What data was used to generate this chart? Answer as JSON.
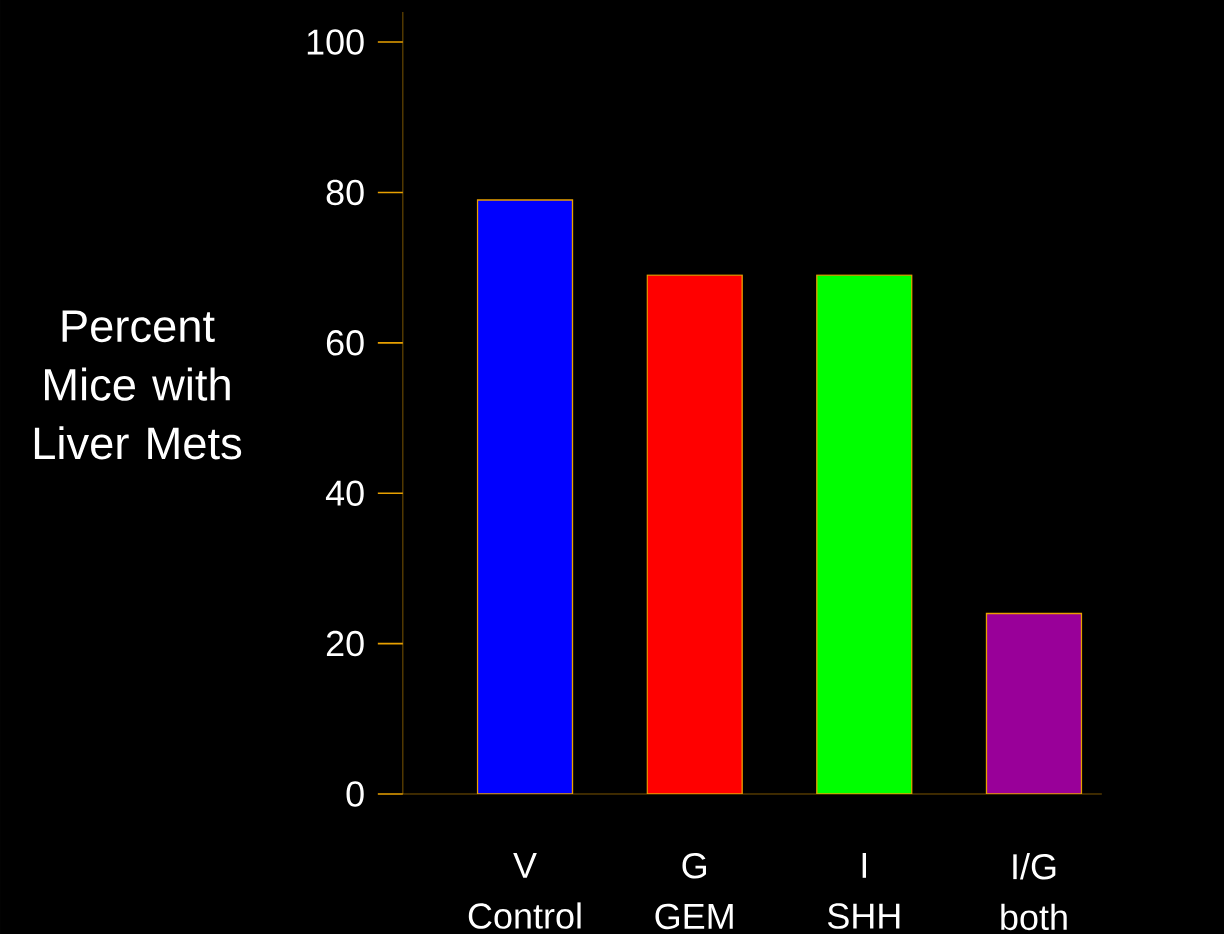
{
  "chart_data": {
    "type": "bar",
    "ylabel": "Percent Mice with Liver Mets",
    "categories": [
      "V Control",
      "G GEM",
      "I SHH",
      "I/G both"
    ],
    "values": [
      79,
      69,
      69,
      24
    ],
    "colors": [
      "#0000ff",
      "#ff0000",
      "#00ff00",
      "#990099"
    ],
    "ylim": [
      0,
      104
    ],
    "yticks": [
      0,
      20,
      40,
      60,
      80,
      100
    ],
    "grid": false
  }
}
